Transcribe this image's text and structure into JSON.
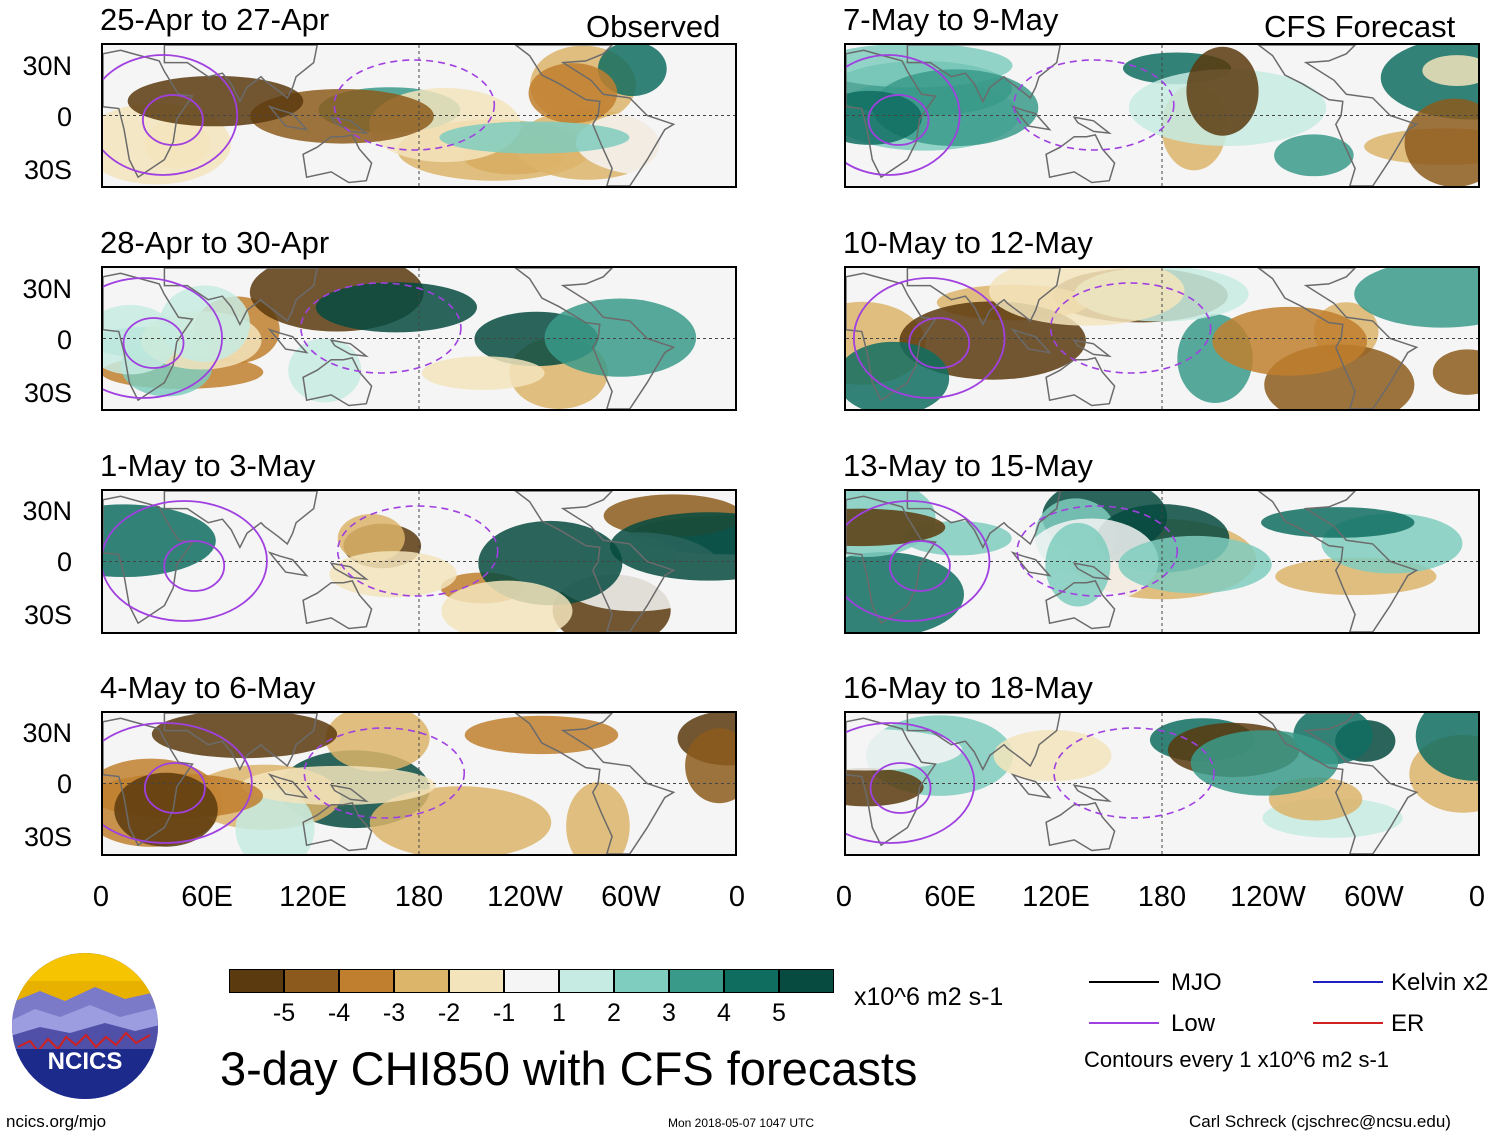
{
  "chart_data": {
    "type": "heatmap",
    "title": "3-day CHI850 with CFS forecasts",
    "units": "x10^6 m2 s-1",
    "x_ticks": [
      "0",
      "60E",
      "120E",
      "180",
      "120W",
      "60W",
      "0"
    ],
    "y_ticks": [
      "30N",
      "0",
      "30S"
    ],
    "colorbar": {
      "labels": [
        "-5",
        "-4",
        "-3",
        "-2",
        "-1",
        "1",
        "2",
        "3",
        "4",
        "5"
      ],
      "colors": [
        "#5a3a0e",
        "#8c5a1c",
        "#bf7f2e",
        "#dcb46a",
        "#f3e4bc",
        "#f5f5f5",
        "#c6ebe2",
        "#7fcdbe",
        "#3a9a8a",
        "#0f6d60",
        "#064a40"
      ]
    },
    "observed_tag": "Observed",
    "forecast_tag": "CFS Forecast",
    "panels": [
      {
        "title": "25-Apr to 27-Apr",
        "column": "observed"
      },
      {
        "title": "28-Apr to 30-Apr",
        "column": "observed"
      },
      {
        "title": "1-May to 3-May",
        "column": "observed"
      },
      {
        "title": "4-May to 6-May",
        "column": "observed"
      },
      {
        "title": "7-May to 9-May",
        "column": "forecast"
      },
      {
        "title": "10-May to 12-May",
        "column": "forecast"
      },
      {
        "title": "13-May to 15-May",
        "column": "forecast"
      },
      {
        "title": "16-May to 18-May",
        "column": "forecast"
      }
    ],
    "legend": {
      "mjo": "MJO",
      "low": "Low",
      "kelvin": "Kelvin x2",
      "er": "ER",
      "note": "Contours every 1 x10^6 m2 s-1",
      "mjo_color": "#000000",
      "low_color": "#a040e0",
      "kelvin_color": "#2020c0",
      "er_color": "#d02020"
    }
  },
  "logo_text": "NCICS",
  "footer": {
    "url": "ncics.org/mjo",
    "timestamp": "Mon 2018-05-07 1047 UTC",
    "author": "Carl Schreck (cjschrec@ncsu.edu)"
  }
}
